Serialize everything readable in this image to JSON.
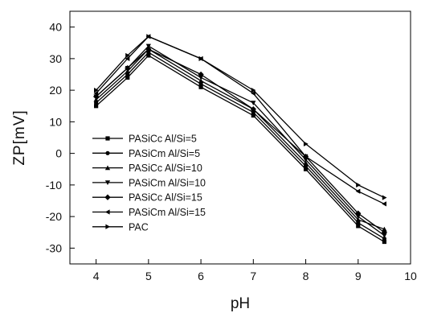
{
  "chart_data": {
    "type": "line",
    "title": "",
    "xlabel": "pH",
    "ylabel": "ZP[mV]",
    "xlim": [
      3.5,
      10
    ],
    "ylim": [
      -35,
      45
    ],
    "x_ticks": [
      "4",
      "5",
      "6",
      "7",
      "8",
      "9",
      "10"
    ],
    "y_ticks": [
      "40",
      "30",
      "20",
      "10",
      "0",
      "-10",
      "-20",
      "-30"
    ],
    "x": [
      4,
      4.6,
      5,
      6,
      7,
      8,
      9,
      9.5
    ],
    "grid": false,
    "legend_position": "left",
    "series": [
      {
        "name": "PASiCc Al/Si=5",
        "marker": "square",
        "values": [
          15,
          24,
          31,
          21,
          12,
          -5,
          -23,
          -28
        ]
      },
      {
        "name": "PASiCm Al/Si=5",
        "marker": "circle",
        "values": [
          16,
          25,
          32,
          22,
          13,
          -4,
          -22,
          -27
        ]
      },
      {
        "name": "PASiCc Al/Si=10",
        "marker": "triangle-up",
        "values": [
          17,
          26,
          33,
          23,
          14,
          -3,
          -21,
          -24
        ]
      },
      {
        "name": "PASiCm Al/Si=10",
        "marker": "triangle-down",
        "values": [
          18,
          27,
          34,
          24,
          16,
          -2,
          -20,
          -26
        ]
      },
      {
        "name": "PASiCc Al/Si=15",
        "marker": "diamond",
        "values": [
          18,
          27,
          33,
          25,
          14,
          -1,
          -19,
          -25
        ]
      },
      {
        "name": "PASiCm Al/Si=15",
        "marker": "triangle-left",
        "values": [
          19,
          30,
          37,
          30,
          19,
          -1,
          -12,
          -16
        ]
      },
      {
        "name": "PAC",
        "marker": "triangle-right",
        "values": [
          20,
          31,
          37,
          30,
          20,
          3,
          -10,
          -14
        ]
      }
    ]
  }
}
